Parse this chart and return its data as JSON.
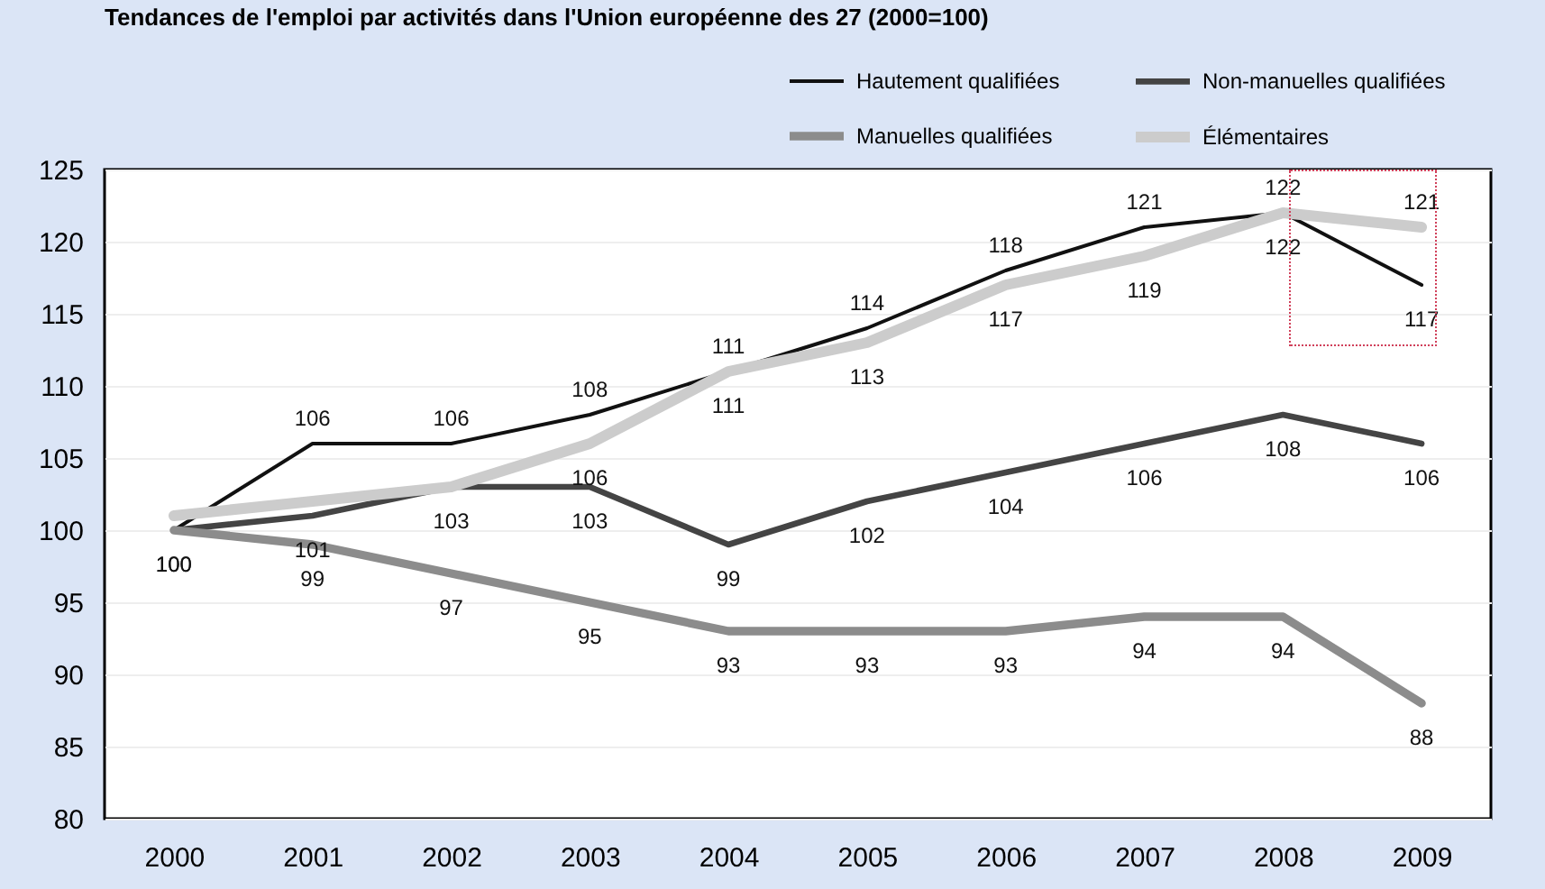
{
  "chart_data": {
    "type": "line",
    "title": "Tendances de l'emploi par activités dans l'Union européenne des 27 (2000=100)",
    "categories": [
      "2000",
      "2001",
      "2002",
      "2003",
      "2004",
      "2005",
      "2006",
      "2007",
      "2008",
      "2009"
    ],
    "series": [
      {
        "name": "Hautement qualifiées",
        "color": "#111111",
        "values": [
          100,
          106,
          106,
          108,
          111,
          114,
          118,
          121,
          122,
          117
        ],
        "value_labels": [
          "100",
          "106",
          "106",
          "108",
          "111",
          "114",
          "118",
          "121",
          "122",
          "117"
        ]
      },
      {
        "name": "Non-manuelles qualifiées",
        "color": "#444444",
        "values": [
          100,
          101,
          103,
          103,
          99,
          102,
          104,
          106,
          108,
          106
        ],
        "value_labels": [
          "100",
          "101",
          "103",
          "103",
          "99",
          "102",
          "104",
          "106",
          "108",
          "106"
        ]
      },
      {
        "name": "Manuelles qualifiées",
        "color": "#8c8c8c",
        "values": [
          100,
          99,
          97,
          95,
          93,
          93,
          93,
          94,
          94,
          88
        ],
        "value_labels": [
          null,
          "99",
          "97",
          "95",
          "93",
          "93",
          "93",
          "94",
          "94",
          "88"
        ]
      },
      {
        "name": "Élémentaires",
        "color": "#cccccc",
        "values": [
          101,
          102,
          103,
          106,
          111,
          113,
          117,
          119,
          122,
          121
        ],
        "value_labels": [
          null,
          null,
          null,
          "106",
          "111",
          "113",
          "117",
          "119",
          "122",
          "121"
        ]
      }
    ],
    "ylim": [
      80,
      125
    ],
    "yticks": [
      80,
      85,
      90,
      95,
      100,
      105,
      110,
      115,
      120,
      125
    ],
    "grid": "y",
    "legend": "top right"
  }
}
